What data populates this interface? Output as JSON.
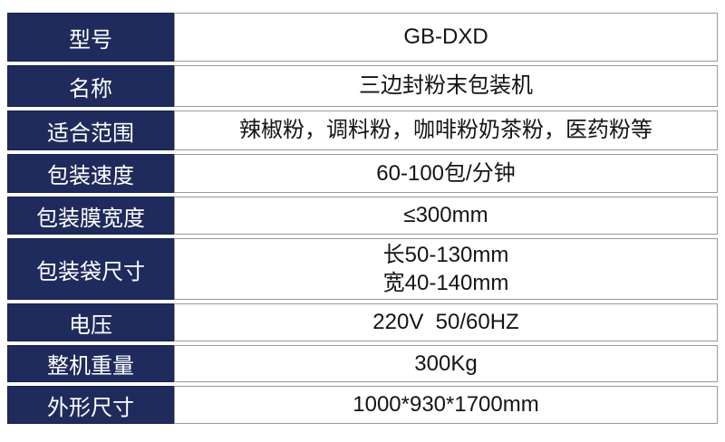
{
  "colors": {
    "header_bg": "#1f2b5c",
    "header_text": "#ffffff",
    "value_text": "#141414",
    "border": "#999999",
    "background": "#ffffff"
  },
  "table": {
    "rows": [
      {
        "label": "型号",
        "value": "GB-DXD"
      },
      {
        "label": "名称",
        "value": "三边封粉末包装机"
      },
      {
        "label": "适合范围",
        "value": "辣椒粉，调料粉，咖啡粉奶茶粉，医药粉等"
      },
      {
        "label": "包装速度",
        "value": "60-100包/分钟"
      },
      {
        "label": "包装膜宽度",
        "value": "≤300mm"
      },
      {
        "label": "包装袋尺寸",
        "value": "长50-130mm\n宽40-140mm"
      },
      {
        "label": "电压",
        "value": "220V  50/60HZ"
      },
      {
        "label": "整机重量",
        "value": "300Kg"
      },
      {
        "label": "外形尺寸",
        "value": "1000*930*1700mm"
      }
    ]
  }
}
